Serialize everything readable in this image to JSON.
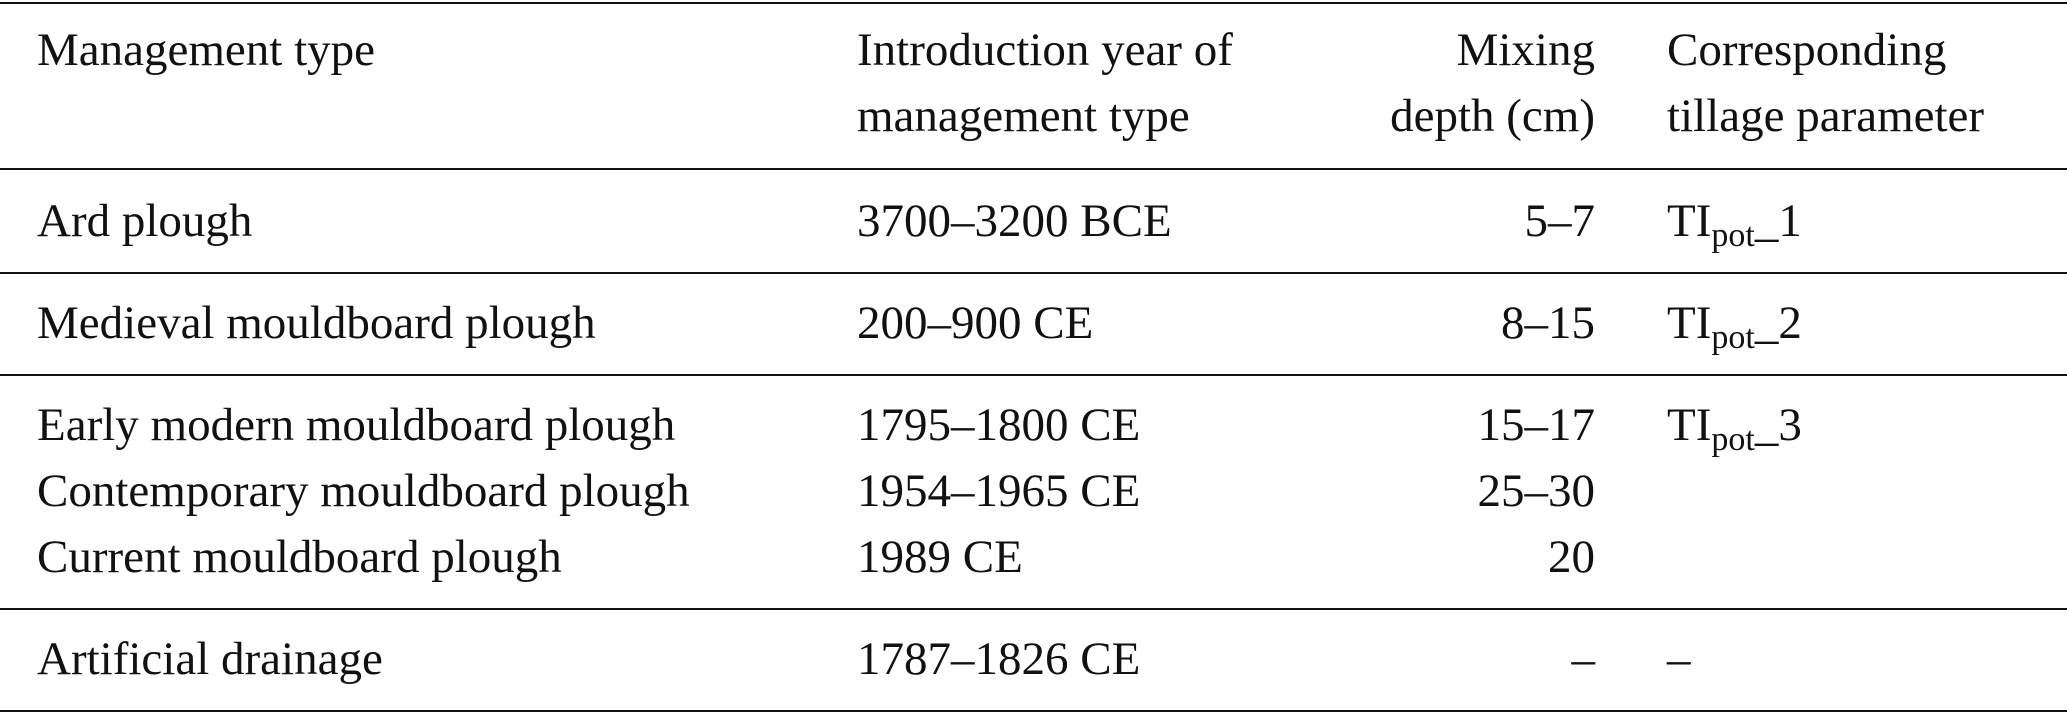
{
  "table": {
    "columns": [
      [
        "Management type"
      ],
      [
        "Introduction year of",
        "management type"
      ],
      [
        "Mixing",
        "depth (cm)"
      ],
      [
        "Corresponding",
        "tillage parameter"
      ]
    ],
    "groups": [
      {
        "rows": [
          {
            "type": "Ard plough",
            "year": "3700–3200 BCE",
            "depth": "5–7"
          }
        ],
        "parameter": {
          "base": "TI",
          "sub": "pot",
          "suffix": "_1"
        }
      },
      {
        "rows": [
          {
            "type": "Medieval mouldboard plough",
            "year": "200–900 CE",
            "depth": "8–15"
          }
        ],
        "parameter": {
          "base": "TI",
          "sub": "pot",
          "suffix": "_2"
        }
      },
      {
        "rows": [
          {
            "type": "Early modern mouldboard plough",
            "year": "1795–1800 CE",
            "depth": "15–17"
          },
          {
            "type": "Contemporary mouldboard plough",
            "year": "1954–1965 CE",
            "depth": "25–30"
          },
          {
            "type": "Current mouldboard plough",
            "year": "1989 CE",
            "depth": "20"
          }
        ],
        "parameter": {
          "base": "TI",
          "sub": "pot",
          "suffix": "_3"
        }
      },
      {
        "rows": [
          {
            "type": "Artificial drainage",
            "year": "1787–1826 CE",
            "depth": "–"
          }
        ],
        "parameter": {
          "base": "–"
        }
      }
    ]
  }
}
